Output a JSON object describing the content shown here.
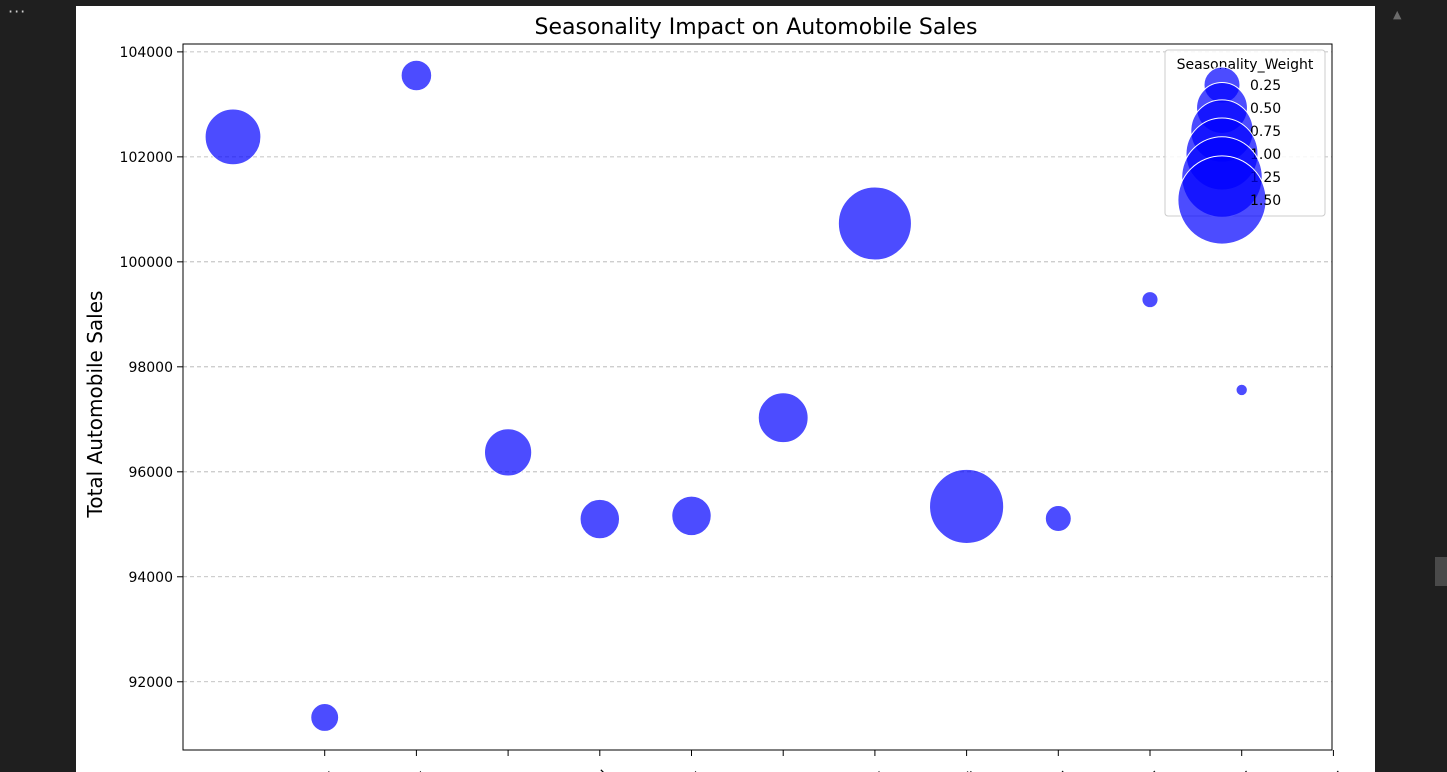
{
  "toolbar": {
    "menu_label": "···",
    "scroll_up_label": "▲"
  },
  "colors": {
    "bubble": "#0000ff",
    "grid": "#b0b0b0",
    "frame": "#000000"
  },
  "chart_data": {
    "type": "scatter",
    "title": "Seasonality Impact on Automobile Sales",
    "xlabel": "",
    "ylabel": "Total Automobile Sales",
    "x_categories_partial": [
      "y",
      "y",
      "h",
      "il",
      "y",
      "e",
      "y",
      "t",
      "er",
      "er",
      "er",
      "er"
    ],
    "ylim": [
      90700,
      104150
    ],
    "yticks": [
      92000,
      94000,
      96000,
      98000,
      100000,
      102000,
      104000
    ],
    "ytick_labels": [
      "92000",
      "94000",
      "96000",
      "98000",
      "100000",
      "102000",
      "104000"
    ],
    "grid": "y-dashed",
    "legend": {
      "title": "Seasonality_Weight",
      "placement": "top-right",
      "entries": [
        "0.25",
        "0.50",
        "0.75",
        "1.00",
        "1.25",
        "1.50"
      ],
      "sizes": [
        0.25,
        0.5,
        0.75,
        1.0,
        1.25,
        1.5
      ]
    },
    "points": [
      {
        "x": 0,
        "y": 102380,
        "weight": 0.6
      },
      {
        "x": 1,
        "y": 91320,
        "weight": 0.15
      },
      {
        "x": 2,
        "y": 103550,
        "weight": 0.18
      },
      {
        "x": 3,
        "y": 96370,
        "weight": 0.43
      },
      {
        "x": 4,
        "y": 95100,
        "weight": 0.3
      },
      {
        "x": 5,
        "y": 95160,
        "weight": 0.3
      },
      {
        "x": 6,
        "y": 97030,
        "weight": 0.48
      },
      {
        "x": 7,
        "y": 100730,
        "weight": 1.03
      },
      {
        "x": 8,
        "y": 95340,
        "weight": 1.06
      },
      {
        "x": 9,
        "y": 95110,
        "weight": 0.13
      },
      {
        "x": 10,
        "y": 99280,
        "weight": 0.05
      },
      {
        "x": 11,
        "y": 97560,
        "weight": 0.025
      }
    ]
  }
}
